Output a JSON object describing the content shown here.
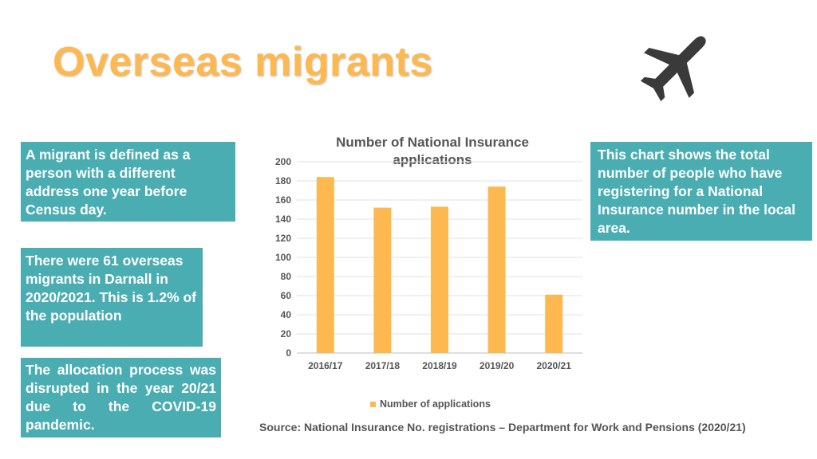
{
  "title": "Overseas migrants",
  "boxes": {
    "definition": "A migrant is defined as a person with a different address one year before Census day.",
    "migrants_count": "There were 61 overseas migrants in Darnall in 2020/2021. This is 1.2% of the population",
    "covid_note": "The allocation process was disrupted in the year 20/21 due to the COVID-19 pandemic.",
    "chart_explanation": "This chart shows the total number of people who have registering for a National Insurance number in the local area."
  },
  "source": "Source: National Insurance No. registrations – Department for Work and Pensions (2020/21)",
  "icons": {
    "plane": "airplane-icon"
  },
  "colors": {
    "accent": "#FDB84F",
    "box": "#4AADB2",
    "text_gray": "#555555"
  },
  "chart_data": {
    "type": "bar",
    "title": "Number of National Insurance applications",
    "categories": [
      "2016/17",
      "2017/18",
      "2018/19",
      "2019/20",
      "2020/21"
    ],
    "series": [
      {
        "name": "Number of applications",
        "values": [
          184,
          152,
          153,
          174,
          61
        ]
      }
    ],
    "ylim": [
      0,
      200
    ],
    "yticks": [
      0,
      20,
      40,
      60,
      80,
      100,
      120,
      140,
      160,
      180,
      200
    ],
    "grid": true,
    "legend": "bottom",
    "xlabel": "",
    "ylabel": ""
  }
}
